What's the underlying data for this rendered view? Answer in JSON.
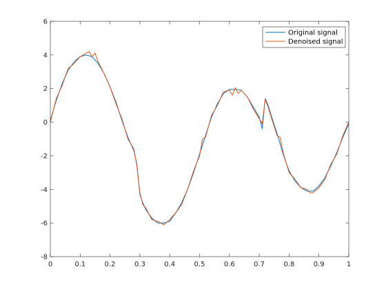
{
  "chart_data": {
    "type": "line",
    "xlim": [
      0,
      1
    ],
    "ylim": [
      -8,
      6
    ],
    "x_ticks": [
      0,
      0.1,
      0.2,
      0.3,
      0.4,
      0.5,
      0.6,
      0.7,
      0.8,
      0.9,
      1
    ],
    "y_ticks": [
      -8,
      -6,
      -4,
      -2,
      0,
      2,
      4,
      6
    ],
    "x_tick_labels": [
      "0",
      "0.1",
      "0.2",
      "0.3",
      "0.4",
      "0.5",
      "0.6",
      "0.7",
      "0.8",
      "0.9",
      "1"
    ],
    "y_tick_labels": [
      "-8",
      "-6",
      "-4",
      "-2",
      "0",
      "2",
      "4",
      "6"
    ],
    "grid": false,
    "legend_position": "top-right",
    "series": [
      {
        "name": "Original signal",
        "color": "#0072BD",
        "x": [
          0,
          0.02,
          0.04,
          0.06,
          0.08,
          0.1,
          0.12,
          0.14,
          0.16,
          0.18,
          0.2,
          0.22,
          0.24,
          0.26,
          0.28,
          0.29,
          0.3,
          0.31,
          0.32,
          0.34,
          0.36,
          0.38,
          0.4,
          0.42,
          0.44,
          0.46,
          0.48,
          0.5,
          0.52,
          0.54,
          0.56,
          0.58,
          0.6,
          0.62,
          0.64,
          0.66,
          0.68,
          0.7,
          0.71,
          0.72,
          0.73,
          0.74,
          0.76,
          0.78,
          0.8,
          0.82,
          0.84,
          0.86,
          0.88,
          0.9,
          0.92,
          0.94,
          0.96,
          0.98,
          1.0
        ],
        "y": [
          0.1,
          1.3,
          2.3,
          3.1,
          3.6,
          3.9,
          4.0,
          3.9,
          3.5,
          2.9,
          2.1,
          1.2,
          0.1,
          -0.9,
          -1.7,
          -2.5,
          -4.3,
          -4.8,
          -5.2,
          -5.7,
          -6.0,
          -6.0,
          -5.9,
          -5.4,
          -4.8,
          -4.0,
          -3.0,
          -1.9,
          -0.8,
          0.3,
          1.1,
          1.7,
          1.95,
          1.95,
          1.9,
          1.5,
          0.9,
          0.3,
          -0.4,
          1.4,
          1.0,
          0.4,
          -0.7,
          -1.9,
          -2.9,
          -3.5,
          -3.9,
          -4.1,
          -4.1,
          -3.8,
          -3.3,
          -2.6,
          -1.8,
          -0.9,
          -0.1
        ]
      },
      {
        "name": "Denoised signal",
        "color": "#D95319",
        "x": [
          0,
          0.02,
          0.04,
          0.06,
          0.08,
          0.1,
          0.12,
          0.13,
          0.14,
          0.15,
          0.16,
          0.18,
          0.2,
          0.22,
          0.24,
          0.26,
          0.28,
          0.29,
          0.3,
          0.31,
          0.32,
          0.34,
          0.36,
          0.38,
          0.4,
          0.42,
          0.44,
          0.46,
          0.48,
          0.5,
          0.51,
          0.52,
          0.54,
          0.56,
          0.58,
          0.6,
          0.61,
          0.62,
          0.63,
          0.64,
          0.66,
          0.68,
          0.7,
          0.71,
          0.72,
          0.73,
          0.74,
          0.76,
          0.77,
          0.78,
          0.8,
          0.82,
          0.84,
          0.86,
          0.87,
          0.88,
          0.9,
          0.92,
          0.94,
          0.96,
          0.98,
          1.0
        ],
        "y": [
          0.0,
          1.4,
          2.2,
          3.2,
          3.5,
          3.9,
          4.1,
          4.2,
          3.9,
          4.1,
          3.6,
          2.9,
          2.1,
          1.1,
          0.2,
          -1.0,
          -1.6,
          -2.6,
          -4.2,
          -4.9,
          -5.1,
          -5.8,
          -5.9,
          -6.1,
          -5.8,
          -5.4,
          -4.9,
          -4.0,
          -2.9,
          -2.0,
          -1.0,
          -0.9,
          0.4,
          1.0,
          1.8,
          1.9,
          1.6,
          2.05,
          1.7,
          1.9,
          1.5,
          0.8,
          0.2,
          -0.1,
          1.35,
          0.9,
          0.3,
          -0.8,
          -0.9,
          -1.8,
          -3.0,
          -3.4,
          -3.9,
          -4.0,
          -4.2,
          -4.2,
          -3.9,
          -3.4,
          -2.5,
          -1.9,
          -0.8,
          0.0
        ]
      }
    ]
  }
}
